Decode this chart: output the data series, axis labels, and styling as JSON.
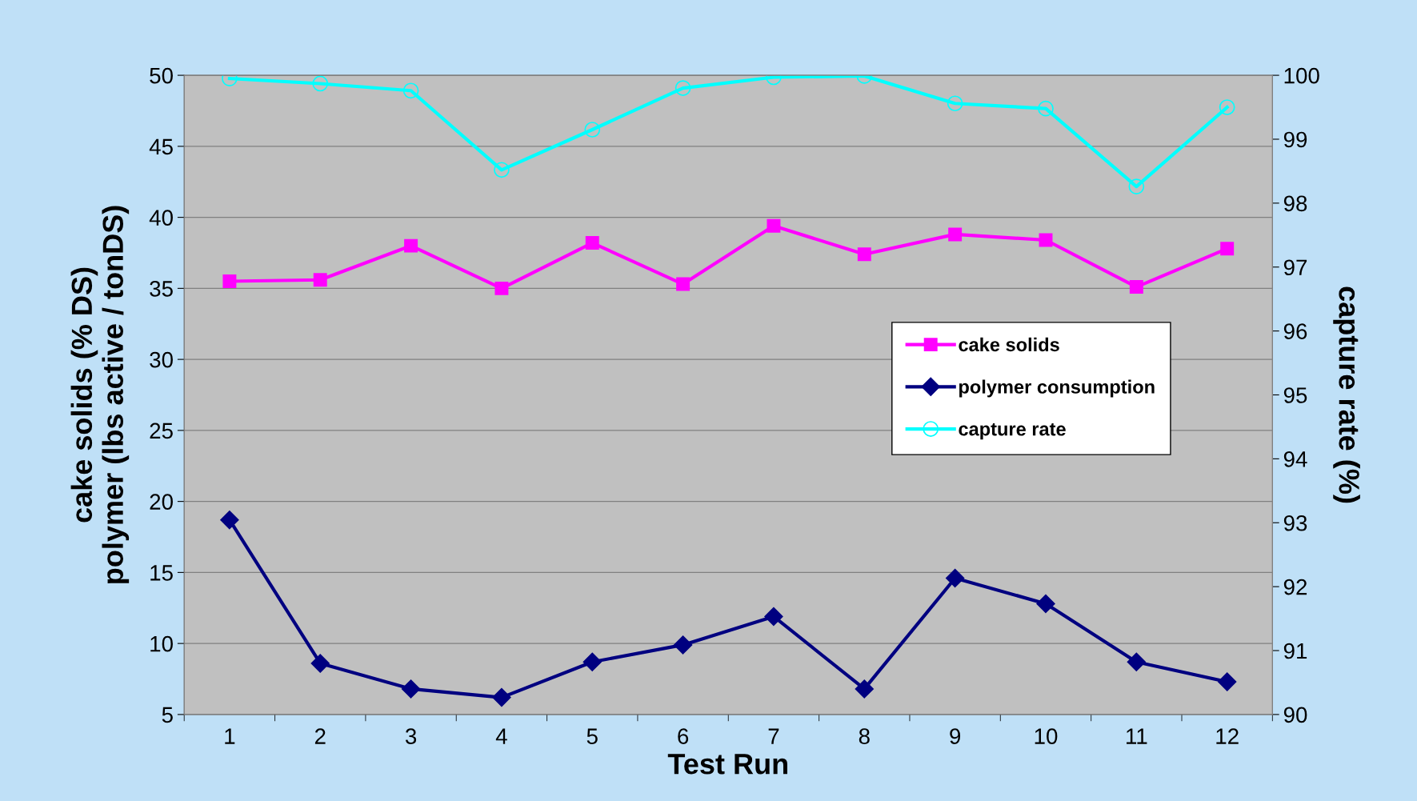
{
  "chart_data": {
    "type": "line",
    "xlabel": "Test Run",
    "ylabel": "cake solids (% DS)\npolymer (lbs active / tonDS)",
    "y2label": "capture rate (%)",
    "categories": [
      "1",
      "2",
      "3",
      "4",
      "5",
      "6",
      "7",
      "8",
      "9",
      "10",
      "11",
      "12"
    ],
    "series": [
      {
        "name": "cake solids",
        "color": "#ff00ff",
        "marker": "square",
        "values": [
          35.5,
          35.6,
          38.0,
          35.0,
          38.2,
          35.3,
          39.4,
          37.4,
          38.8,
          38.4,
          35.1,
          37.8
        ]
      },
      {
        "name": "polymer consumption",
        "color": "#000080",
        "marker": "diamond",
        "values": [
          18.7,
          8.6,
          6.8,
          6.2,
          8.7,
          9.9,
          11.9,
          6.8,
          14.6,
          12.8,
          8.7,
          7.3
        ]
      },
      {
        "name": "capture rate",
        "color": "#00ffff",
        "marker": "circle",
        "axis": "y2",
        "values": [
          99.95,
          99.87,
          99.76,
          98.52,
          99.15,
          99.8,
          99.97,
          99.99,
          99.56,
          99.48,
          98.26,
          99.5
        ]
      }
    ],
    "ylim": [
      5,
      50
    ],
    "yticks": [
      5,
      10,
      15,
      20,
      25,
      30,
      35,
      40,
      45,
      50
    ],
    "y2lim": [
      90,
      100
    ],
    "y2ticks": [
      90,
      91,
      92,
      93,
      94,
      95,
      96,
      97,
      98,
      99,
      100
    ],
    "grid": "y",
    "legend": "right",
    "line_style": "solid"
  }
}
